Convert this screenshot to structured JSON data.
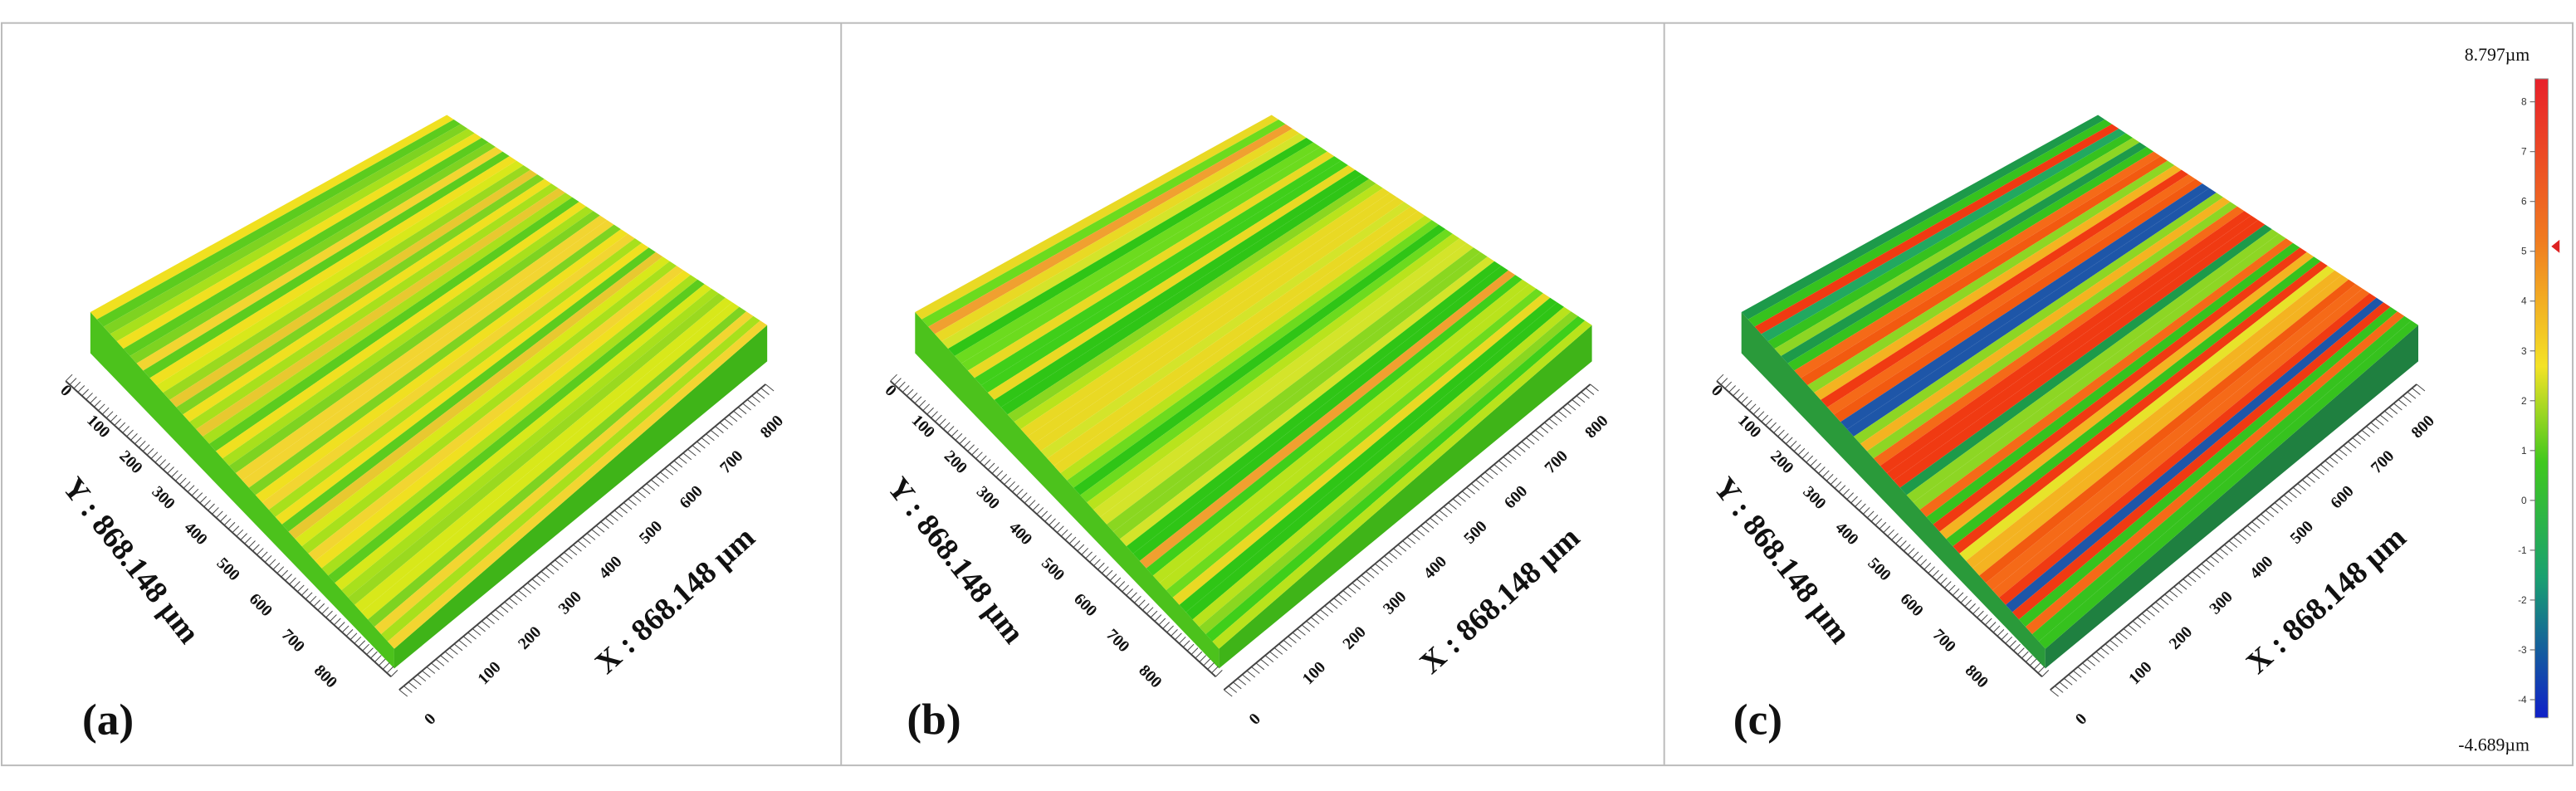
{
  "panels": [
    {
      "label": "(a)",
      "x_axis_label": "X : 868.148 µm",
      "y_axis_label": "Y : 868.148 µm",
      "x_ticks": [
        0,
        100,
        200,
        300,
        400,
        500,
        600,
        700,
        800
      ],
      "y_ticks": [
        0,
        100,
        200,
        300,
        400,
        500,
        600,
        700,
        800
      ]
    },
    {
      "label": "(b)",
      "x_axis_label": "X : 868.148 µm",
      "y_axis_label": "Y : 868.148 µm",
      "x_ticks": [
        0,
        100,
        200,
        300,
        400,
        500,
        600,
        700,
        800
      ],
      "y_ticks": [
        0,
        100,
        200,
        300,
        400,
        500,
        600,
        700,
        800
      ]
    },
    {
      "label": "(c)",
      "x_axis_label": "X : 868.148 µm",
      "y_axis_label": "Y : 868.148 µm",
      "x_ticks": [
        0,
        100,
        200,
        300,
        400,
        500,
        600,
        700,
        800
      ],
      "y_ticks": [
        0,
        100,
        200,
        300,
        400,
        500,
        600,
        700,
        800
      ]
    }
  ],
  "colorbar": {
    "max_label": "8.797µm",
    "min_label": "-4.689µm",
    "ticks": [
      8,
      7,
      6,
      5,
      4,
      3,
      2,
      1,
      0,
      -1,
      -2,
      -3,
      -4
    ]
  }
}
